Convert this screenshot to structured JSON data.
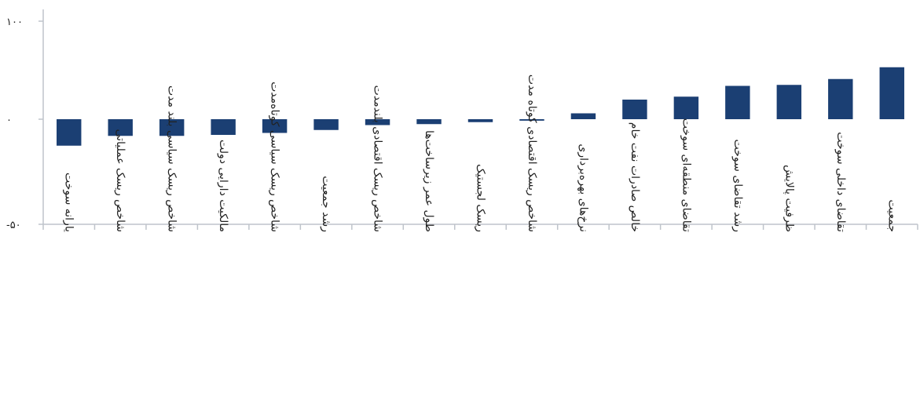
{
  "chart_data": {
    "type": "bar",
    "title": "",
    "xlabel": "",
    "ylabel": "",
    "ylim": [
      -50,
      100
    ],
    "y_ticks": [
      {
        "value": 100,
        "label": "۱۰۰"
      },
      {
        "value": 0,
        "label": "۰"
      },
      {
        "value": -50,
        "label": "-۵۰"
      }
    ],
    "grid": false,
    "bar_color": "#1b3f73",
    "axis_color": "#bfc4cb",
    "categories": [
      "یارانه سوخت",
      "شاخص ریسک عملیاتی",
      "شاخص ریسک سیاسی بلند مدت",
      "مالکیت دارایی دولت",
      "شاخص ریسک سیاسی کوتاه‌مدت",
      "رشد جمعیت",
      "شاخص ریسک اقتصادی بلندمدت",
      "طول عمر زیرساخت‌ها",
      "ریسک لجستیک",
      "شاخص ریسک اقتصادی کوتاه مدت",
      "نرخ‌های بهره‌برداری",
      "خالص صادرات نفت خام",
      "تقاضای منطقه‌ای سوخت",
      "رشد تقاضای سوخت",
      "ظرفیت پالایش",
      "تقاضای داخلی سوخت",
      "جمعیت"
    ],
    "values": [
      -27,
      -17,
      -17,
      -16,
      -14,
      -11,
      -6,
      -5,
      -3,
      -1.5,
      6,
      20,
      23,
      34,
      35,
      41,
      53
    ]
  }
}
